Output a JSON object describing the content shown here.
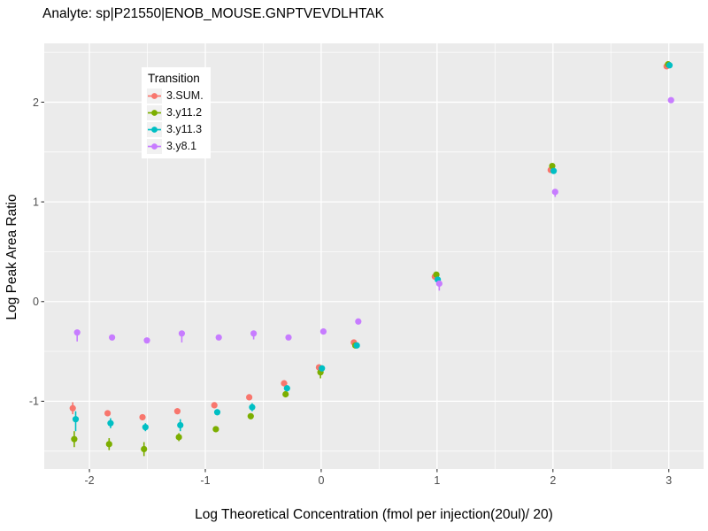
{
  "title": "Analyte: sp|P21550|ENOB_MOUSE.GNPTVEVDLHTAK",
  "chart_data": {
    "type": "scatter",
    "title": "Analyte: sp|P21550|ENOB_MOUSE.GNPTVEVDLHTAK",
    "xlabel": "Log Theoretical Concentration (fmol per injection(20ul)/ 20)",
    "ylabel": "Log Peak Area Ratio",
    "xlim": [
      -2.39,
      3.3
    ],
    "ylim": [
      -1.68,
      2.59
    ],
    "x_ticks": [
      -2,
      -1,
      0,
      1,
      2,
      3
    ],
    "x_tick_labels": [
      "-2",
      "-1",
      "0",
      "1",
      "2",
      "3"
    ],
    "y_ticks": [
      -1,
      0,
      1,
      2
    ],
    "y_tick_labels": [
      "-1",
      "0",
      "1",
      "2"
    ],
    "x_minor": [
      -1.5,
      -0.5,
      0.5,
      1.5,
      2.5
    ],
    "y_minor": [
      -1.5,
      -0.5,
      0.5,
      1.5,
      2.5
    ],
    "grid": true,
    "legend_title": "Transition",
    "legend_position": "inside-top-left",
    "style": {
      "panel_bg": "#EBEBEB",
      "grid_color": "#FFFFFF",
      "tick_color": "#333333",
      "tick_label_color": "#4D4D4D"
    },
    "x": [
      -2.125,
      -1.824,
      -1.523,
      -1.222,
      -0.903,
      -0.602,
      -0.301,
      0,
      0.301,
      1,
      2,
      3
    ],
    "series": [
      {
        "name": "3.SUM.",
        "color": "#F8766D",
        "y": [
          -1.07,
          -1.12,
          -1.16,
          -1.1,
          -1.04,
          -0.96,
          -0.82,
          -0.66,
          -0.41,
          0.25,
          1.32,
          2.36
        ],
        "ylo": [
          -1.13,
          -1.15,
          -1.19,
          -1.13,
          -1.07,
          -0.99,
          -0.85,
          -0.69,
          -0.44,
          0.22,
          1.3,
          2.34
        ],
        "yhi": [
          -1.01,
          -1.09,
          -1.13,
          -1.07,
          -1.01,
          -0.93,
          -0.79,
          -0.63,
          -0.38,
          0.28,
          1.34,
          2.38
        ]
      },
      {
        "name": "3.y11.2",
        "color": "#7CAE00",
        "y": [
          -1.38,
          -1.43,
          -1.48,
          -1.36,
          -1.28,
          -1.15,
          -0.93,
          -0.71,
          -0.44,
          0.27,
          1.36,
          2.38
        ],
        "ylo": [
          -1.46,
          -1.49,
          -1.55,
          -1.4,
          -1.31,
          -1.18,
          -0.96,
          -0.77,
          -0.47,
          0.24,
          1.34,
          2.36
        ],
        "yhi": [
          -1.3,
          -1.37,
          -1.41,
          -1.32,
          -1.25,
          -1.12,
          -0.9,
          -0.65,
          -0.41,
          0.3,
          1.38,
          2.4
        ]
      },
      {
        "name": "3.y11.3",
        "color": "#00BFC4",
        "y": [
          -1.18,
          -1.22,
          -1.26,
          -1.24,
          -1.11,
          -1.06,
          -0.87,
          -0.67,
          -0.44,
          0.22,
          1.31,
          2.37
        ],
        "ylo": [
          -1.3,
          -1.27,
          -1.3,
          -1.3,
          -1.14,
          -1.1,
          -0.9,
          -0.7,
          -0.47,
          0.19,
          1.29,
          2.35
        ],
        "yhi": [
          -1.1,
          -1.17,
          -1.22,
          -1.18,
          -1.08,
          -1.02,
          -0.84,
          -0.64,
          -0.41,
          0.25,
          1.33,
          2.39
        ]
      },
      {
        "name": "3.y8.1",
        "color": "#C77CFF",
        "y": [
          -0.31,
          -0.36,
          -0.39,
          -0.32,
          -0.36,
          -0.32,
          -0.36,
          -0.3,
          -0.2,
          0.18,
          1.1,
          2.02
        ],
        "ylo": [
          -0.4,
          -0.38,
          -0.41,
          -0.41,
          -0.38,
          -0.38,
          -0.38,
          -0.32,
          -0.22,
          0.11,
          1.05,
          2.0
        ],
        "yhi": [
          -0.29,
          -0.34,
          -0.37,
          -0.3,
          -0.34,
          -0.3,
          -0.34,
          -0.28,
          -0.18,
          0.2,
          1.12,
          2.04
        ]
      }
    ]
  }
}
